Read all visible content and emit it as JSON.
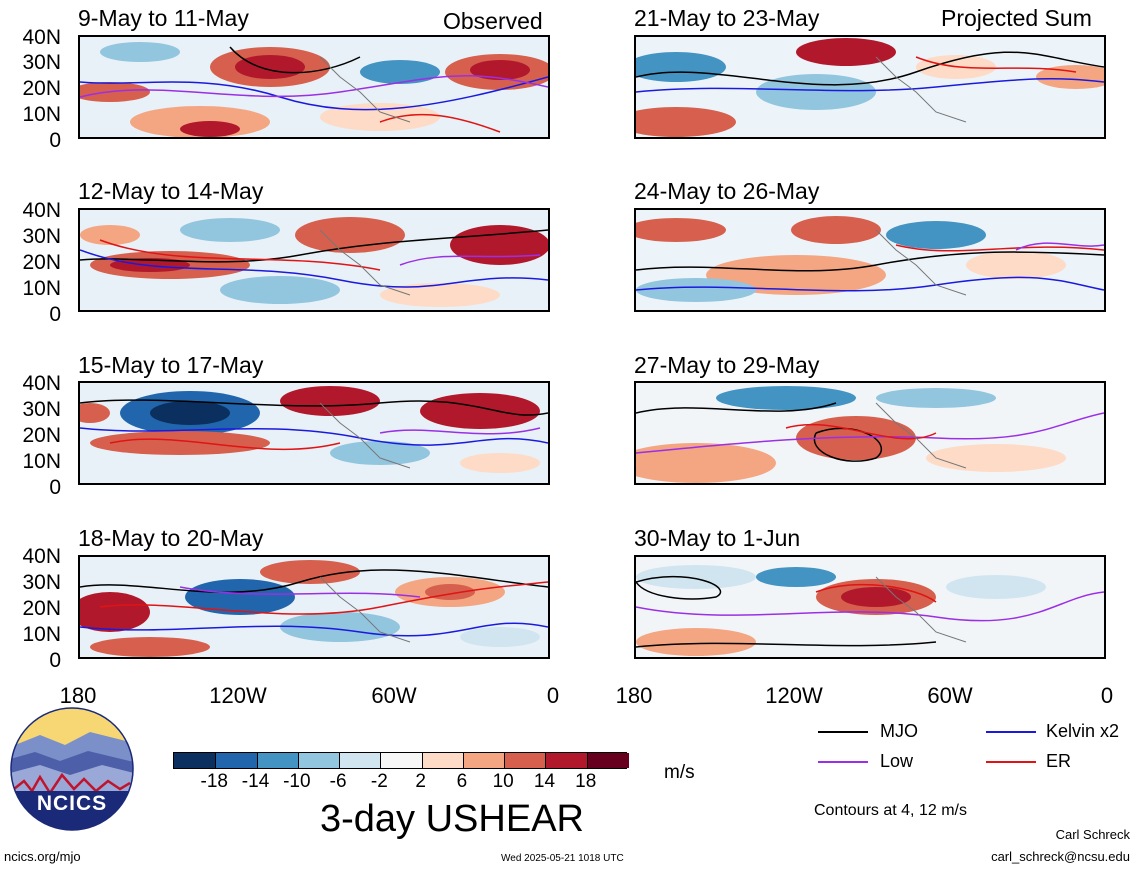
{
  "column_tags": {
    "left": "Observed",
    "right": "Projected Sum"
  },
  "panels": {
    "left": [
      {
        "title": "9-May to 11-May"
      },
      {
        "title": "12-May to 14-May"
      },
      {
        "title": "15-May to 17-May"
      },
      {
        "title": "18-May to 20-May"
      }
    ],
    "right": [
      {
        "title": "21-May to 23-May"
      },
      {
        "title": "24-May to 26-May"
      },
      {
        "title": "27-May to 29-May"
      },
      {
        "title": "30-May to 1-Jun"
      }
    ]
  },
  "y_axis_labels": [
    "40N",
    "30N",
    "20N",
    "10N",
    "0"
  ],
  "x_axis_labels": [
    "180",
    "120W",
    "60W",
    "0"
  ],
  "colorbar": {
    "labels": [
      "-18",
      "-14",
      "-10",
      "-6",
      "-2",
      "2",
      "6",
      "10",
      "14",
      "18"
    ],
    "units": "m/s",
    "colors": [
      "#0b2f5f",
      "#2166ac",
      "#4393c3",
      "#92c5de",
      "#d1e5f0",
      "#f7f7f7",
      "#fddbc7",
      "#f4a582",
      "#d6604d",
      "#b2182b",
      "#67001f"
    ]
  },
  "main_title": "3-day USHEAR",
  "legend": [
    {
      "label": "MJO",
      "color": "#000000"
    },
    {
      "label": "Kelvin x2",
      "color": "#1a1adf"
    },
    {
      "label": "Low",
      "color": "#9a2fe6"
    },
    {
      "label": "ER",
      "color": "#e01414"
    }
  ],
  "contour_note": "Contours at 4, 12 m/s",
  "logo": {
    "text": "NCICS"
  },
  "footer": {
    "url": "ncics.org/mjo",
    "timestamp": "Wed 2025-05-21 1018 UTC",
    "author": "Carl Schreck",
    "email": "carl_schreck@ncsu.edu"
  }
}
